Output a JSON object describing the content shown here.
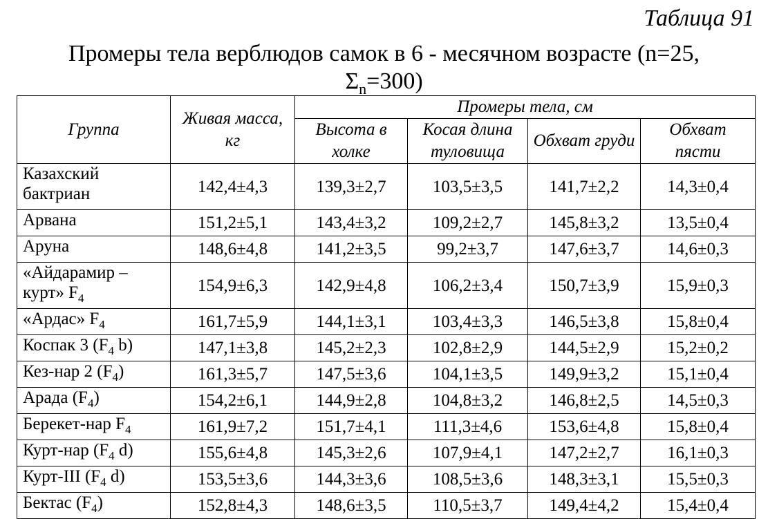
{
  "table_number": "Таблица 91",
  "title": {
    "line1": "Промеры тела верблюдов самок в 6 - месячном возрасте (n=25,",
    "line2_pre": "Σ",
    "line2_sub": "n",
    "line2_post": "=300)"
  },
  "headers": {
    "group": "Группа",
    "live_mass": "Живая масса, кг",
    "body_measurements": "Промеры тела, см",
    "height_withers": "Высота в холке",
    "oblique_length": "Косая длина туловища",
    "chest_girth": "Обхват груди",
    "metacarpus_girth": "Обхват пясти"
  },
  "rows": [
    {
      "group": "Казахский бактриан",
      "group_sub": "",
      "group_post": "",
      "mass": "142,4±4,3",
      "height": "139,3±2,7",
      "length": "103,5±3,5",
      "chest": "141,7±2,2",
      "metacarpus": "14,3±0,4"
    },
    {
      "group": "Арвана",
      "group_sub": "",
      "group_post": "",
      "mass": "151,2±5,1",
      "height": "143,4±3,2",
      "length": "109,2±2,7",
      "chest": "145,8±3,2",
      "metacarpus": "13,5±0,4"
    },
    {
      "group": "Аруна",
      "group_sub": "",
      "group_post": "",
      "mass": "148,6±4,8",
      "height": "141,2±3,5",
      "length": "99,2±3,7",
      "chest": "147,6±3,7",
      "metacarpus": "14,6±0,3"
    },
    {
      "group": "«Айдарамир – курт» F",
      "group_sub": "4",
      "group_post": "",
      "mass": "154,9±6,3",
      "height": "142,9±4,8",
      "length": "106,2±3,4",
      "chest": "150,7±3,9",
      "metacarpus": "15,9±0,3"
    },
    {
      "group": "«Ардас» F",
      "group_sub": "4",
      "group_post": "",
      "mass": "161,7±5,9",
      "height": "144,1±3,1",
      "length": "103,4±3,3",
      "chest": "146,5±3,8",
      "metacarpus": "15,8±0,4"
    },
    {
      "group": "Коспак 3 (F",
      "group_sub": "4",
      "group_post": " b)",
      "mass": "147,1±3,8",
      "height": "145,2±2,3",
      "length": "102,8±2,9",
      "chest": "144,5±2,9",
      "metacarpus": "15,2±0,2"
    },
    {
      "group": "Кез-нар 2 (F",
      "group_sub": "4",
      "group_post": ")",
      "mass": "161,3±5,7",
      "height": "147,5±3,6",
      "length": "104,1±3,5",
      "chest": "149,9±3,2",
      "metacarpus": "15,1±0,4"
    },
    {
      "group": "Арада (F",
      "group_sub": "4",
      "group_post": ")",
      "mass": "154,2±6,1",
      "height": "144,9±2,8",
      "length": "104,8±3,2",
      "chest": "146,8±2,5",
      "metacarpus": "14,5±0,3"
    },
    {
      "group": "Берекет-нар F",
      "group_sub": "4",
      "group_post": "",
      "mass": "161,9±7,2",
      "height": "151,7±4,1",
      "length": "111,3±4,6",
      "chest": "153,6±4,8",
      "metacarpus": "15,8±0,4"
    },
    {
      "group": "Курт-нар (F",
      "group_sub": "4",
      "group_post": " d)",
      "mass": "155,6±4,8",
      "height": "145,3±2,6",
      "length": "107,9±4,1",
      "chest": "147,2±2,7",
      "metacarpus": "16,1±0,3"
    },
    {
      "group": "Курт-III (F",
      "group_sub": "4",
      "group_post": " d)",
      "mass": "153,5±3,6",
      "height": "144,3±3,6",
      "length": "108,5±3,6",
      "chest": "148,3±3,1",
      "metacarpus": "15,5±0,3"
    },
    {
      "group": "Бектас (F",
      "group_sub": "4",
      "group_post": ")",
      "mass": "152,8±4,3",
      "height": "148,6±3,5",
      "length": "110,5±3,7",
      "chest": "149,4±4,2",
      "metacarpus": "15,4±0,4"
    }
  ]
}
